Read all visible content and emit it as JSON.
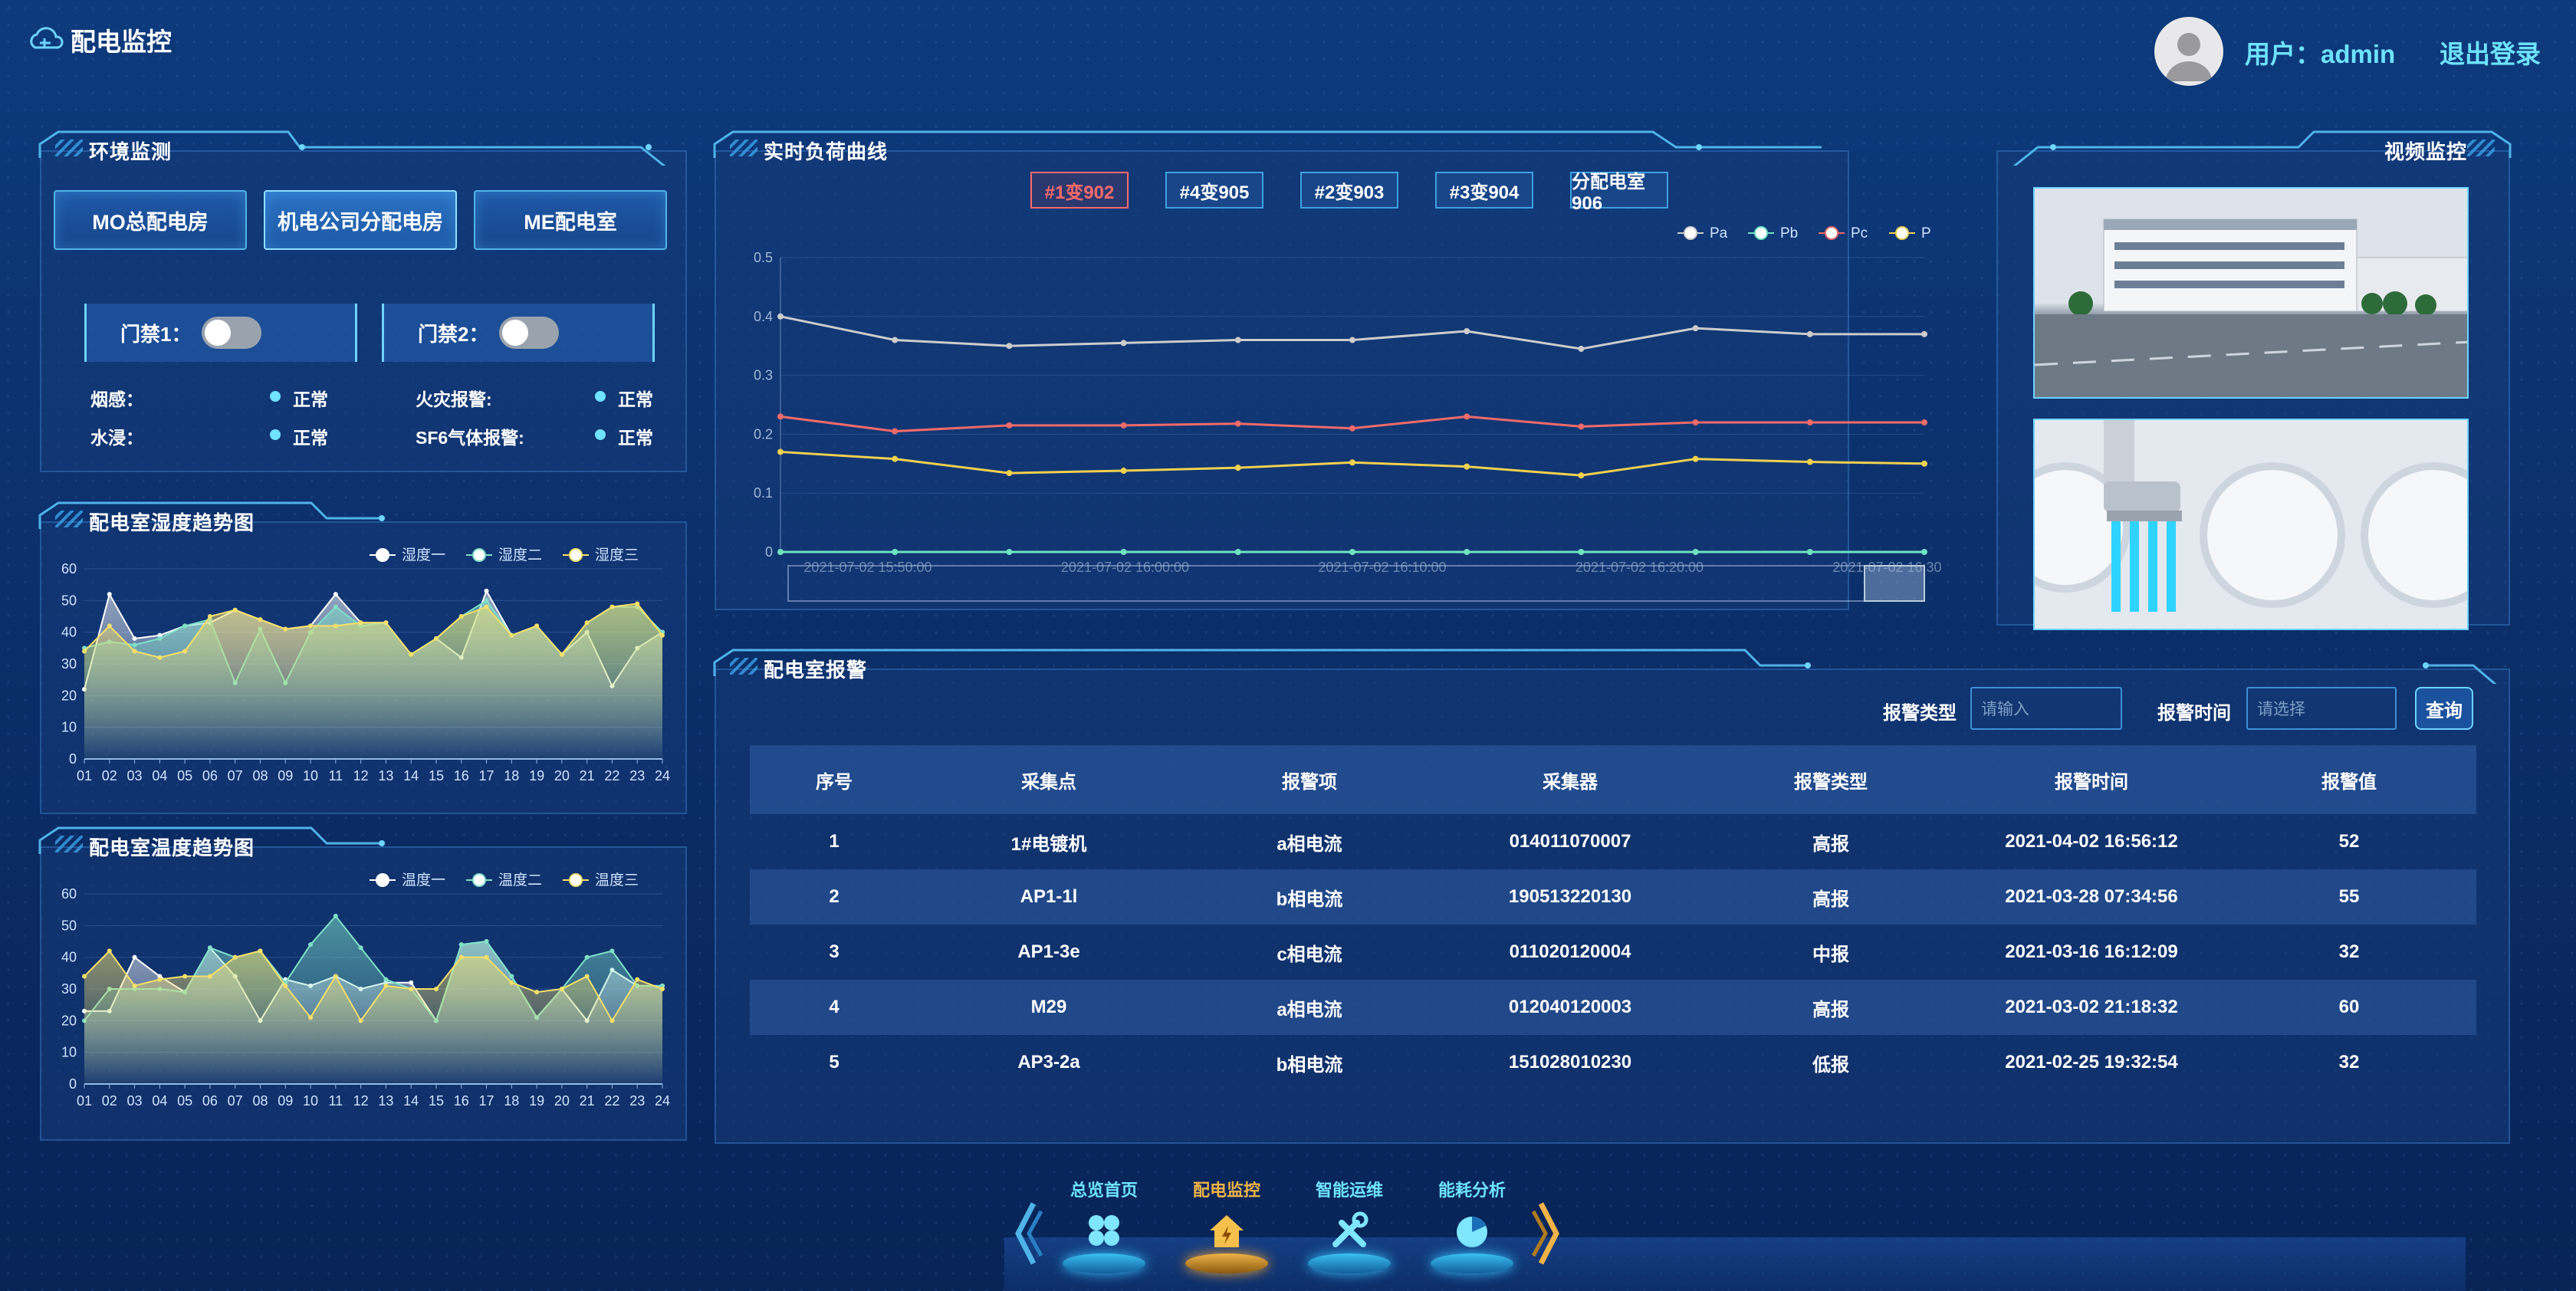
{
  "header": {
    "title": "配电监控",
    "user_label": "用户：admin",
    "logout": "退出登录"
  },
  "env": {
    "title": "环境监测",
    "tabs": [
      "MO总配电房",
      "机电公司分配电房",
      "ME配电室"
    ],
    "active_tab": 1,
    "door1": "门禁1：",
    "door2": "门禁2：",
    "status": [
      {
        "label": "烟感：",
        "value": "正常"
      },
      {
        "label": "火灾报警:",
        "value": "正常"
      },
      {
        "label": "水浸：",
        "value": "正常"
      },
      {
        "label": "SF6气体报警:",
        "value": "正常"
      }
    ]
  },
  "humidity": {
    "title": "配电室湿度趋势图"
  },
  "temperature": {
    "title": "配电室温度趋势图"
  },
  "load": {
    "title": "实时负荷曲线",
    "feeders": [
      "#1变902",
      "#4变905",
      "#2变903",
      "#3变904",
      "分配电室906"
    ],
    "active_feeder": 0
  },
  "video": {
    "title": "视频监控"
  },
  "alarm": {
    "title": "配电室报警",
    "type_label": "报警类型",
    "type_placeholder": "请输入",
    "time_label": "报警时间",
    "time_placeholder": "请选择",
    "query": "查询",
    "columns": [
      "序号",
      "采集点",
      "报警项",
      "采集器",
      "报警类型",
      "报警时间",
      "报警值"
    ],
    "rows": [
      [
        "1",
        "1#电镀机",
        "a相电流",
        "014011070007",
        "高报",
        "2021-04-02 16:56:12",
        "52"
      ],
      [
        "2",
        "AP1-1l",
        "b相电流",
        "190513220130",
        "高报",
        "2021-03-28 07:34:56",
        "55"
      ],
      [
        "3",
        "AP1-3e",
        "c相电流",
        "011020120004",
        "中报",
        "2021-03-16 16:12:09",
        "32"
      ],
      [
        "4",
        "M29",
        "a相电流",
        "012040120003",
        "高报",
        "2021-03-02 21:18:32",
        "60"
      ],
      [
        "5",
        "AP3-2a",
        "b相电流",
        "151028010230",
        "低报",
        "2021-02-25 19:32:54",
        "32"
      ]
    ]
  },
  "nav": {
    "items": [
      "总览首页",
      "配电监控",
      "智能运维",
      "能耗分析"
    ],
    "active": 1
  },
  "chart_data": [
    {
      "type": "area",
      "title": "配电室湿度趋势图",
      "categories": [
        "01",
        "02",
        "03",
        "04",
        "05",
        "06",
        "07",
        "08",
        "09",
        "10",
        "11",
        "12",
        "13",
        "14",
        "15",
        "16",
        "17",
        "18",
        "19",
        "20",
        "21",
        "22",
        "23",
        "24"
      ],
      "ylim": [
        0,
        60
      ],
      "yticks": [
        0,
        10,
        20,
        30,
        40,
        50,
        60
      ],
      "legend_position": "top-right",
      "series": [
        {
          "name": "湿度一",
          "color": "#ffffff",
          "values": [
            22,
            52,
            38,
            39,
            42,
            43,
            47,
            44,
            41,
            42,
            52,
            43,
            43,
            33,
            38,
            32,
            53,
            39,
            42,
            33,
            40,
            23,
            35,
            40
          ]
        },
        {
          "name": "湿度二",
          "color": "#7fe0c8",
          "values": [
            35,
            37,
            36,
            38,
            42,
            44,
            24,
            41,
            24,
            40,
            48,
            42,
            43,
            33,
            38,
            45,
            50,
            39,
            42,
            33,
            43,
            48,
            48,
            40
          ]
        },
        {
          "name": "湿度三",
          "color": "#f5e06a",
          "values": [
            34,
            42,
            34,
            32,
            34,
            45,
            47,
            44,
            41,
            42,
            42,
            43,
            43,
            33,
            38,
            45,
            48,
            39,
            42,
            33,
            43,
            48,
            49,
            39
          ]
        }
      ]
    },
    {
      "type": "area",
      "title": "配电室温度趋势图",
      "categories": [
        "01",
        "02",
        "03",
        "04",
        "05",
        "06",
        "07",
        "08",
        "09",
        "10",
        "11",
        "12",
        "13",
        "14",
        "15",
        "16",
        "17",
        "18",
        "19",
        "20",
        "21",
        "22",
        "23",
        "24"
      ],
      "ylim": [
        0,
        60
      ],
      "yticks": [
        0,
        10,
        20,
        30,
        40,
        50,
        60
      ],
      "legend_position": "top-right",
      "series": [
        {
          "name": "温度一",
          "color": "#ffffff",
          "values": [
            23,
            23,
            40,
            34,
            29,
            43,
            34,
            20,
            33,
            31,
            34,
            30,
            32,
            32,
            20,
            44,
            45,
            34,
            21,
            30,
            20,
            36,
            31,
            31
          ]
        },
        {
          "name": "温度二",
          "color": "#7fe0c8",
          "values": [
            20,
            30,
            30,
            30,
            29,
            43,
            40,
            42,
            32,
            44,
            53,
            43,
            33,
            30,
            20,
            44,
            45,
            34,
            21,
            30,
            40,
            42,
            31,
            31
          ]
        },
        {
          "name": "温度三",
          "color": "#f5e06a",
          "values": [
            34,
            42,
            31,
            33,
            34,
            34,
            40,
            42,
            31,
            21,
            34,
            20,
            31,
            30,
            30,
            40,
            40,
            32,
            29,
            30,
            34,
            20,
            33,
            30
          ]
        }
      ]
    },
    {
      "type": "line",
      "title": "实时负荷曲线",
      "x_labels": [
        "2021-07-02 15:50:00",
        "2021-07-02 16:00:00",
        "2021-07-02 16:10:00",
        "2021-07-02 16:20:00",
        "2021-07-02 16:30:00"
      ],
      "ylim": [
        0,
        0.5
      ],
      "yticks": [
        "0",
        "0.1",
        "0.2",
        "0.3",
        "0.4",
        "0.5"
      ],
      "legend_position": "top-right",
      "series": [
        {
          "name": "Pa",
          "color": "#cccccc",
          "values": [
            0.4,
            0.36,
            0.35,
            0.355,
            0.36,
            0.36,
            0.375,
            0.345,
            0.38,
            0.37,
            0.37
          ]
        },
        {
          "name": "Pb",
          "color": "#6fe3c0",
          "values": [
            0,
            0,
            0,
            0,
            0,
            0,
            0,
            0,
            0,
            0,
            0
          ]
        },
        {
          "name": "Pc",
          "color": "#f06a6a",
          "values": [
            0.23,
            0.205,
            0.215,
            0.215,
            0.218,
            0.21,
            0.23,
            0.213,
            0.22,
            0.22,
            0.22
          ]
        },
        {
          "name": "P",
          "color": "#f0d050",
          "values": [
            0.17,
            0.158,
            0.134,
            0.138,
            0.143,
            0.152,
            0.145,
            0.13,
            0.158,
            0.153,
            0.15
          ]
        }
      ]
    }
  ]
}
